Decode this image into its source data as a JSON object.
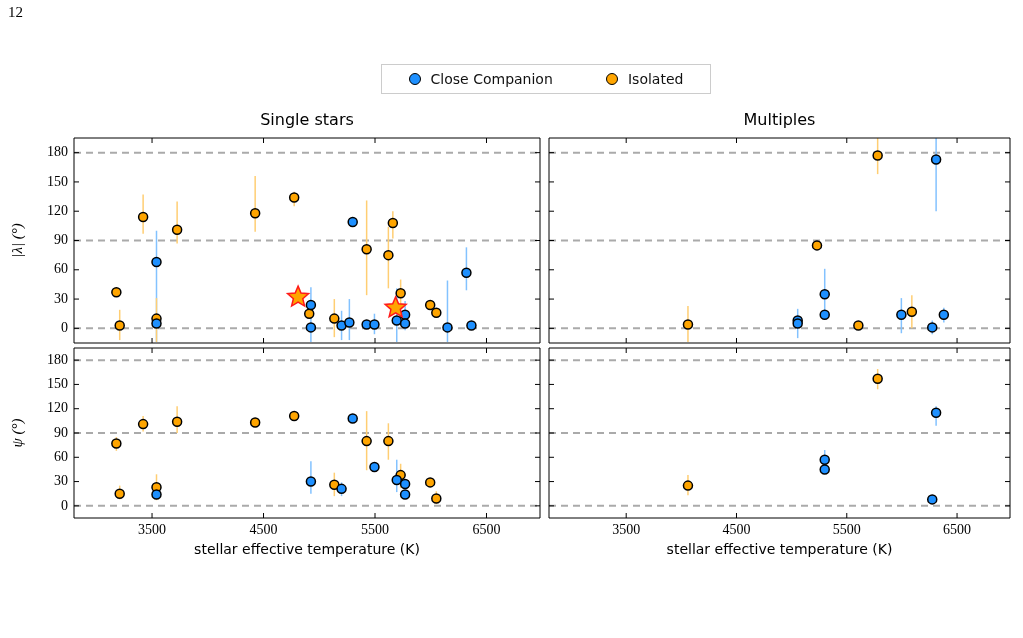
{
  "chart_data": [
    {
      "type": "scatter",
      "title": "Single stars",
      "ylabel": "|λ| (°)",
      "xlim": [
        2800,
        6980
      ],
      "ylim": [
        -15,
        195
      ],
      "xticks": [
        3500,
        4500,
        5500,
        6500
      ],
      "yticks": [
        0,
        30,
        60,
        90,
        120,
        150,
        180
      ],
      "tick_labels": "y",
      "marker": "circle",
      "legend": "top",
      "annotations": [
        "12"
      ],
      "ref_lines": [
        {
          "axis": "y",
          "value": 0,
          "color": "#aaaaaa",
          "line_style": "dashed"
        },
        {
          "axis": "y",
          "value": 90,
          "color": "#aaaaaa",
          "line_style": "dashed"
        },
        {
          "axis": "y",
          "value": 180,
          "color": "#aaaaaa",
          "line_style": "dashed"
        }
      ],
      "series": [
        {
          "name": "Close Companion",
          "color": "#1e90ff",
          "x": [
            3540,
            3540,
            4925,
            4925,
            5200,
            5270,
            5300,
            5425,
            5495,
            5695,
            5770,
            5770,
            6150,
            6320,
            6365
          ],
          "values": [
            68,
            5,
            24,
            1,
            3,
            6,
            109,
            4,
            4,
            8,
            14,
            5,
            1,
            57,
            3
          ],
          "errors": [
            [
              -14,
              100
            ],
            null,
            [
              0,
              42
            ],
            [
              -14,
              5
            ],
            [
              -12,
              18
            ],
            [
              -12,
              30
            ],
            null,
            null,
            [
              -6,
              15
            ],
            [
              -14,
              41
            ],
            [
              -2,
              28
            ],
            null,
            [
              -14,
              49
            ],
            [
              39,
              83
            ],
            null
          ]
        },
        {
          "name": "Isolated",
          "color": "#ffa500",
          "x": [
            3180,
            3210,
            3420,
            3540,
            3725,
            4425,
            4775,
            4910,
            5135,
            5425,
            5620,
            5660,
            5730,
            5995,
            6050
          ],
          "values": [
            37,
            3,
            114,
            10,
            101,
            118,
            134,
            15,
            10,
            81,
            75,
            108,
            36,
            24,
            16
          ],
          "errors": [
            null,
            [
              -12,
              19
            ],
            [
              97,
              137
            ],
            [
              -14,
              31
            ],
            [
              87,
              130
            ],
            [
              99,
              156
            ],
            [
              125,
              140
            ],
            null,
            [
              -9,
              30
            ],
            [
              34,
              131
            ],
            [
              41,
              104
            ],
            [
              92,
              120
            ],
            [
              20,
              50
            ],
            null,
            null
          ]
        },
        {
          "color": "#ffa500",
          "marker": "star",
          "x": [
            4810,
            5685
          ],
          "values": [
            32,
            21
          ]
        }
      ]
    },
    {
      "type": "scatter",
      "title": "Multiples",
      "xlim": [
        2800,
        6980
      ],
      "ylim": [
        -15,
        195
      ],
      "xticks": [
        3500,
        4500,
        5500,
        6500
      ],
      "yticks": [
        0,
        30,
        60,
        90,
        120,
        150,
        180
      ],
      "tick_labels": false,
      "marker": "circle",
      "ref_lines": [
        {
          "axis": "y",
          "value": 0,
          "color": "#aaaaaa",
          "line_style": "dashed"
        },
        {
          "axis": "y",
          "value": 90,
          "color": "#aaaaaa",
          "line_style": "dashed"
        },
        {
          "axis": "y",
          "value": 180,
          "color": "#aaaaaa",
          "line_style": "dashed"
        }
      ],
      "series": [
        {
          "color": "#1e90ff",
          "x": [
            5055,
            5055,
            5300,
            5300,
            5995,
            6275,
            6310,
            6380
          ],
          "values": [
            8,
            5,
            35,
            14,
            14,
            1,
            173,
            14
          ],
          "errors": [
            [
              -10,
              20
            ],
            null,
            [
              14,
              61
            ],
            null,
            [
              -5,
              31
            ],
            [
              -6,
              8
            ],
            [
              120,
              195
            ],
            [
              6,
              21
            ]
          ]
        },
        {
          "color": "#ffa500",
          "x": [
            4060,
            5230,
            5605,
            5780,
            6090
          ],
          "values": [
            4,
            85,
            3,
            177,
            17
          ],
          "errors": [
            [
              -14,
              23
            ],
            null,
            null,
            [
              158,
              195
            ],
            [
              0,
              34
            ]
          ]
        }
      ]
    },
    {
      "type": "scatter",
      "xlabel": "stellar effective temperature (K)",
      "ylabel": "ψ (°)",
      "xlim": [
        2800,
        6980
      ],
      "ylim": [
        -15,
        195
      ],
      "xticks": [
        3500,
        4500,
        5500,
        6500
      ],
      "yticks": [
        0,
        30,
        60,
        90,
        120,
        150,
        180
      ],
      "marker": "circle",
      "ref_lines": [
        {
          "axis": "y",
          "value": 0,
          "color": "#aaaaaa",
          "line_style": "dashed"
        },
        {
          "axis": "y",
          "value": 90,
          "color": "#aaaaaa",
          "line_style": "dashed"
        },
        {
          "axis": "y",
          "value": 180,
          "color": "#aaaaaa",
          "line_style": "dashed"
        }
      ],
      "series": [
        {
          "color": "#1e90ff",
          "x": [
            3540,
            4925,
            5200,
            5300,
            5495,
            5695,
            5770,
            5770
          ],
          "values": [
            14,
            30,
            21,
            108,
            48,
            32,
            27,
            14
          ],
          "errors": [
            null,
            [
              15,
              55
            ],
            [
              12,
              29
            ],
            null,
            null,
            [
              17,
              57
            ],
            null,
            null
          ]
        },
        {
          "color": "#ffa500",
          "x": [
            3180,
            3210,
            3420,
            3540,
            3725,
            4425,
            4775,
            5135,
            5425,
            5620,
            5730,
            5995,
            6050
          ],
          "values": [
            77,
            15,
            101,
            23,
            104,
            103,
            111,
            26,
            80,
            80,
            38,
            29,
            9
          ],
          "errors": [
            [
              68,
              85
            ],
            [
              8,
              25
            ],
            [
              92,
              111
            ],
            [
              7,
              39
            ],
            [
              90,
              123
            ],
            null,
            null,
            [
              12,
              41
            ],
            [
              44,
              117
            ],
            [
              57,
              102
            ],
            [
              22,
              52
            ],
            null,
            [
              2,
              18
            ]
          ]
        }
      ]
    },
    {
      "type": "scatter",
      "xlabel": "stellar effective temperature (K)",
      "xlim": [
        2800,
        6980
      ],
      "ylim": [
        -15,
        195
      ],
      "xticks": [
        3500,
        4500,
        5500,
        6500
      ],
      "yticks": [
        0,
        30,
        60,
        90,
        120,
        150,
        180
      ],
      "tick_labels": "x",
      "marker": "circle",
      "ref_lines": [
        {
          "axis": "y",
          "value": 0,
          "color": "#aaaaaa",
          "line_style": "dashed"
        },
        {
          "axis": "y",
          "value": 90,
          "color": "#aaaaaa",
          "line_style": "dashed"
        },
        {
          "axis": "y",
          "value": 180,
          "color": "#aaaaaa",
          "line_style": "dashed"
        }
      ],
      "series": [
        {
          "color": "#1e90ff",
          "x": [
            5300,
            5300,
            6310,
            6275
          ],
          "values": [
            57,
            45,
            115,
            8
          ],
          "errors": [
            [
              50,
              69
            ],
            null,
            [
              99,
              123
            ],
            null
          ]
        },
        {
          "color": "#ffa500",
          "x": [
            4060,
            5780
          ],
          "values": [
            25,
            157
          ],
          "errors": [
            [
              13,
              38
            ],
            [
              144,
              169
            ]
          ]
        }
      ]
    }
  ]
}
